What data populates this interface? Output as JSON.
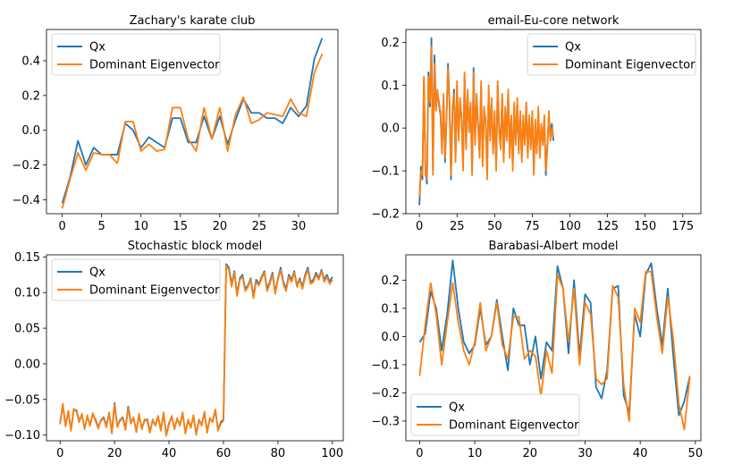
{
  "chart_data": [
    {
      "type": "line",
      "title": "Zachary's karate club",
      "xlabel": "",
      "ylabel": "",
      "xlim": [
        -2,
        35
      ],
      "ylim": [
        -0.48,
        0.58
      ],
      "xticks": [
        0,
        5,
        10,
        15,
        20,
        25,
        30
      ],
      "yticks": [
        -0.4,
        -0.2,
        0.0,
        0.2,
        0.4
      ],
      "ytick_labels": [
        "−0.4",
        "−0.2",
        "0.0",
        "0.2",
        "0.4"
      ],
      "legend": "top-left",
      "series": [
        {
          "name": "Qx",
          "color": "#1f77b4",
          "x_start": 0,
          "values": [
            -0.42,
            -0.27,
            -0.06,
            -0.2,
            -0.1,
            -0.14,
            -0.14,
            -0.14,
            0.04,
            0.0,
            -0.1,
            -0.04,
            -0.07,
            -0.1,
            0.07,
            0.07,
            -0.07,
            -0.07,
            0.08,
            -0.05,
            0.08,
            -0.08,
            0.06,
            0.18,
            0.1,
            0.1,
            0.07,
            0.07,
            0.04,
            0.13,
            0.08,
            0.14,
            0.41,
            0.53
          ]
        },
        {
          "name": "Dominant Eigenvector",
          "color": "#ff7f0e",
          "x_start": 0,
          "values": [
            -0.45,
            -0.28,
            -0.13,
            -0.23,
            -0.13,
            -0.14,
            -0.14,
            -0.19,
            0.05,
            0.05,
            -0.12,
            -0.08,
            -0.12,
            -0.11,
            0.13,
            0.13,
            -0.05,
            -0.12,
            0.13,
            -0.05,
            0.13,
            -0.12,
            0.09,
            0.19,
            0.04,
            0.06,
            0.1,
            0.09,
            0.08,
            0.18,
            0.1,
            0.08,
            0.33,
            0.44
          ]
        }
      ]
    },
    {
      "type": "line",
      "title": "email-Eu-core network",
      "xlabel": "",
      "ylabel": "",
      "xlim": [
        -9,
        187
      ],
      "ylim": [
        -0.2,
        0.23
      ],
      "xticks": [
        0,
        25,
        50,
        75,
        100,
        125,
        150,
        175
      ],
      "yticks": [
        -0.2,
        -0.1,
        0.0,
        0.1,
        0.2
      ],
      "ytick_labels": [
        "−0.2",
        "−0.1",
        "0.0",
        "0.1",
        "0.2"
      ],
      "legend": "top-right",
      "series": [
        {
          "name": "Qx",
          "color": "#1f77b4",
          "x_start": 0,
          "values": [
            -0.18,
            -0.09,
            -0.12,
            0.11,
            -0.1,
            -0.13,
            0.13,
            0.05,
            0.21,
            -0.1,
            0.17,
            0.05,
            0.08,
            0.06,
            0.03,
            -0.05,
            0.07,
            -0.08,
            0.02,
            0.15,
            0.06,
            -0.12,
            0.04,
            0.09,
            -0.07,
            0.1,
            -0.02,
            0.06,
            0.03,
            -0.09,
            0.12,
            -0.04,
            0.08,
            0.0,
            0.05,
            -0.1,
            0.14,
            -0.03,
            0.07,
            0.01,
            -0.06,
            0.1,
            -0.08,
            0.04,
            0.02,
            -0.11,
            0.09,
            -0.02,
            0.06,
            -0.05,
            0.03,
            -0.09,
            0.1,
            0.0,
            -0.04,
            0.07,
            -0.07,
            0.04,
            -0.02,
            0.08,
            -0.06,
            0.02,
            -0.09,
            0.05,
            -0.03,
            0.06,
            -0.05,
            0.03,
            -0.07,
            0.02,
            -0.03,
            0.05,
            -0.06,
            0.02,
            -0.04,
            0.03,
            -0.1,
            0.01,
            -0.05,
            0.04,
            -0.06,
            0.0,
            -0.03,
            0.02,
            -0.11,
            -0.04,
            0.03,
            -0.02,
            0.01,
            -0.03
          ]
        },
        {
          "name": "Dominant Eigenvector",
          "color": "#ff7f0e",
          "x_start": 0,
          "values": [
            -0.16,
            -0.1,
            -0.11,
            0.12,
            -0.11,
            -0.12,
            0.12,
            0.06,
            0.19,
            -0.11,
            0.15,
            0.04,
            0.09,
            0.05,
            0.04,
            -0.06,
            0.08,
            -0.07,
            0.03,
            0.14,
            0.05,
            -0.11,
            0.05,
            0.08,
            -0.08,
            0.11,
            -0.03,
            0.07,
            0.02,
            -0.1,
            0.13,
            -0.05,
            0.09,
            -0.01,
            0.06,
            -0.11,
            0.13,
            -0.04,
            0.08,
            0.0,
            -0.07,
            0.11,
            -0.09,
            0.05,
            0.01,
            -0.12,
            0.1,
            -0.03,
            0.07,
            -0.06,
            0.04,
            -0.1,
            0.11,
            -0.01,
            -0.05,
            0.08,
            -0.08,
            0.05,
            -0.03,
            0.09,
            -0.07,
            0.03,
            -0.1,
            0.06,
            -0.04,
            0.07,
            -0.06,
            0.04,
            -0.08,
            0.03,
            -0.04,
            0.06,
            -0.07,
            0.03,
            -0.05,
            0.04,
            -0.11,
            0.02,
            -0.06,
            0.05,
            -0.07,
            0.01,
            -0.04,
            0.03,
            -0.1,
            -0.05,
            0.04,
            -0.03,
            0.0,
            -0.02
          ]
        }
      ]
    },
    {
      "type": "line",
      "title": "Stochastic block model",
      "xlabel": "",
      "ylabel": "",
      "xlim": [
        -5,
        104
      ],
      "ylim": [
        -0.108,
        0.153
      ],
      "xticks": [
        0,
        20,
        40,
        60,
        80,
        100
      ],
      "yticks": [
        -0.1,
        -0.05,
        0.0,
        0.05,
        0.1,
        0.15
      ],
      "ytick_labels": [
        "−0.10",
        "−0.05",
        "0.00",
        "0.05",
        "0.10",
        "0.15"
      ],
      "legend": "top-left",
      "series": [
        {
          "name": "Qx",
          "color": "#1f77b4",
          "x_start": 0,
          "values": [
            -0.083,
            -0.058,
            -0.086,
            -0.068,
            -0.092,
            -0.065,
            -0.065,
            -0.08,
            -0.072,
            -0.09,
            -0.074,
            -0.085,
            -0.071,
            -0.078,
            -0.089,
            -0.08,
            -0.075,
            -0.087,
            -0.07,
            -0.096,
            -0.055,
            -0.087,
            -0.08,
            -0.075,
            -0.091,
            -0.06,
            -0.082,
            -0.077,
            -0.094,
            -0.072,
            -0.09,
            -0.08,
            -0.078,
            -0.095,
            -0.08,
            -0.085,
            -0.075,
            -0.092,
            -0.07,
            -0.1,
            -0.083,
            -0.075,
            -0.09,
            -0.078,
            -0.085,
            -0.07,
            -0.096,
            -0.08,
            -0.088,
            -0.074,
            -0.098,
            -0.08,
            -0.085,
            -0.069,
            -0.095,
            -0.078,
            -0.08,
            -0.066,
            -0.092,
            -0.082,
            -0.078,
            0.14,
            0.135,
            0.112,
            0.13,
            0.098,
            0.12,
            0.125,
            0.105,
            0.11,
            0.12,
            0.095,
            0.118,
            0.112,
            0.122,
            0.13,
            0.105,
            0.115,
            0.128,
            0.1,
            0.12,
            0.135,
            0.115,
            0.105,
            0.125,
            0.118,
            0.13,
            0.11,
            0.12,
            0.108,
            0.125,
            0.135,
            0.115,
            0.118,
            0.128,
            0.12,
            0.132,
            0.118,
            0.125,
            0.115,
            0.122
          ]
        },
        {
          "name": "Dominant Eigenvector",
          "color": "#ff7f0e",
          "x_start": 0,
          "values": [
            -0.085,
            -0.056,
            -0.088,
            -0.066,
            -0.094,
            -0.063,
            -0.067,
            -0.082,
            -0.07,
            -0.092,
            -0.072,
            -0.087,
            -0.069,
            -0.08,
            -0.091,
            -0.078,
            -0.077,
            -0.089,
            -0.068,
            -0.098,
            -0.057,
            -0.089,
            -0.078,
            -0.077,
            -0.093,
            -0.062,
            -0.084,
            -0.075,
            -0.096,
            -0.07,
            -0.092,
            -0.078,
            -0.08,
            -0.097,
            -0.078,
            -0.087,
            -0.073,
            -0.094,
            -0.068,
            -0.101,
            -0.085,
            -0.073,
            -0.092,
            -0.076,
            -0.087,
            -0.068,
            -0.098,
            -0.078,
            -0.09,
            -0.072,
            -0.1,
            -0.078,
            -0.087,
            -0.067,
            -0.097,
            -0.076,
            -0.082,
            -0.064,
            -0.094,
            -0.084,
            -0.08,
            0.138,
            0.132,
            0.108,
            0.128,
            0.095,
            0.118,
            0.122,
            0.102,
            0.108,
            0.118,
            0.092,
            0.115,
            0.11,
            0.12,
            0.128,
            0.102,
            0.112,
            0.125,
            0.098,
            0.118,
            0.132,
            0.112,
            0.102,
            0.122,
            0.115,
            0.128,
            0.108,
            0.118,
            0.105,
            0.122,
            0.132,
            0.112,
            0.115,
            0.125,
            0.118,
            0.13,
            0.115,
            0.122,
            0.112,
            0.118
          ]
        }
      ]
    },
    {
      "type": "line",
      "title": "Barabasi-Albert model",
      "xlabel": "",
      "ylabel": "",
      "xlim": [
        -2.5,
        51
      ],
      "ylim": [
        -0.37,
        0.29
      ],
      "xticks": [
        0,
        10,
        20,
        30,
        40,
        50
      ],
      "yticks": [
        -0.3,
        -0.2,
        -0.1,
        0.0,
        0.1,
        0.2
      ],
      "ytick_labels": [
        "−0.3",
        "−0.2",
        "−0.1",
        "0.0",
        "0.1",
        "0.2"
      ],
      "legend": "bottom-left",
      "series": [
        {
          "name": "Qx",
          "color": "#1f77b4",
          "x_start": 0,
          "values": [
            -0.02,
            0.01,
            0.16,
            0.1,
            -0.05,
            0.08,
            0.27,
            0.1,
            -0.02,
            -0.06,
            -0.03,
            0.1,
            -0.03,
            0.0,
            0.13,
            0.0,
            -0.12,
            0.1,
            0.04,
            0.04,
            -0.1,
            0.0,
            -0.15,
            -0.02,
            -0.05,
            0.25,
            0.17,
            -0.06,
            0.2,
            -0.07,
            0.15,
            0.12,
            -0.18,
            -0.22,
            -0.12,
            0.17,
            0.18,
            -0.21,
            -0.27,
            0.08,
            0.0,
            0.22,
            0.26,
            0.1,
            -0.03,
            0.17,
            -0.07,
            -0.28,
            -0.23,
            -0.14
          ]
        },
        {
          "name": "Dominant Eigenvector",
          "color": "#ff7f0e",
          "x_start": 0,
          "values": [
            -0.14,
            0.04,
            0.19,
            0.08,
            -0.1,
            0.05,
            0.19,
            0.05,
            -0.05,
            -0.1,
            -0.02,
            0.12,
            -0.05,
            0.0,
            0.12,
            -0.03,
            -0.08,
            0.07,
            0.07,
            -0.08,
            -0.05,
            -0.07,
            -0.21,
            -0.05,
            -0.13,
            0.22,
            0.17,
            -0.02,
            0.17,
            -0.1,
            0.12,
            0.08,
            -0.15,
            -0.17,
            -0.15,
            0.18,
            0.14,
            -0.17,
            -0.3,
            0.1,
            0.05,
            0.23,
            0.23,
            0.07,
            -0.06,
            0.14,
            -0.01,
            -0.24,
            -0.33,
            -0.14
          ]
        }
      ]
    }
  ]
}
